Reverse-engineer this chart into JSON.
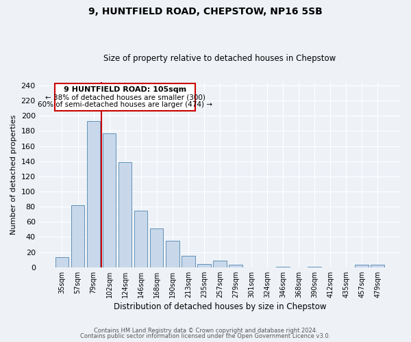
{
  "title": "9, HUNTFIELD ROAD, CHEPSTOW, NP16 5SB",
  "subtitle": "Size of property relative to detached houses in Chepstow",
  "xlabel": "Distribution of detached houses by size in Chepstow",
  "ylabel": "Number of detached properties",
  "bar_labels": [
    "35sqm",
    "57sqm",
    "79sqm",
    "102sqm",
    "124sqm",
    "146sqm",
    "168sqm",
    "190sqm",
    "213sqm",
    "235sqm",
    "257sqm",
    "279sqm",
    "301sqm",
    "324sqm",
    "346sqm",
    "368sqm",
    "390sqm",
    "412sqm",
    "435sqm",
    "457sqm",
    "479sqm"
  ],
  "bar_values": [
    13,
    82,
    193,
    177,
    139,
    75,
    51,
    35,
    15,
    4,
    9,
    3,
    0,
    0,
    1,
    0,
    1,
    0,
    0,
    3,
    3
  ],
  "bar_color": "#c8d8ea",
  "bar_edge_color": "#6090b8",
  "vline_color": "#cc0000",
  "annotation_title": "9 HUNTFIELD ROAD: 105sqm",
  "annotation_line1": "← 38% of detached houses are smaller (300)",
  "annotation_line2": "60% of semi-detached houses are larger (474) →",
  "box_edge_color": "#cc0000",
  "ylim": [
    0,
    245
  ],
  "yticks": [
    0,
    20,
    40,
    60,
    80,
    100,
    120,
    140,
    160,
    180,
    200,
    220,
    240
  ],
  "footer1": "Contains HM Land Registry data © Crown copyright and database right 2024.",
  "footer2": "Contains public sector information licensed under the Open Government Licence v3.0.",
  "bg_color": "#eef2f7",
  "plot_bg_color": "#eef2f7",
  "grid_color": "#ffffff"
}
